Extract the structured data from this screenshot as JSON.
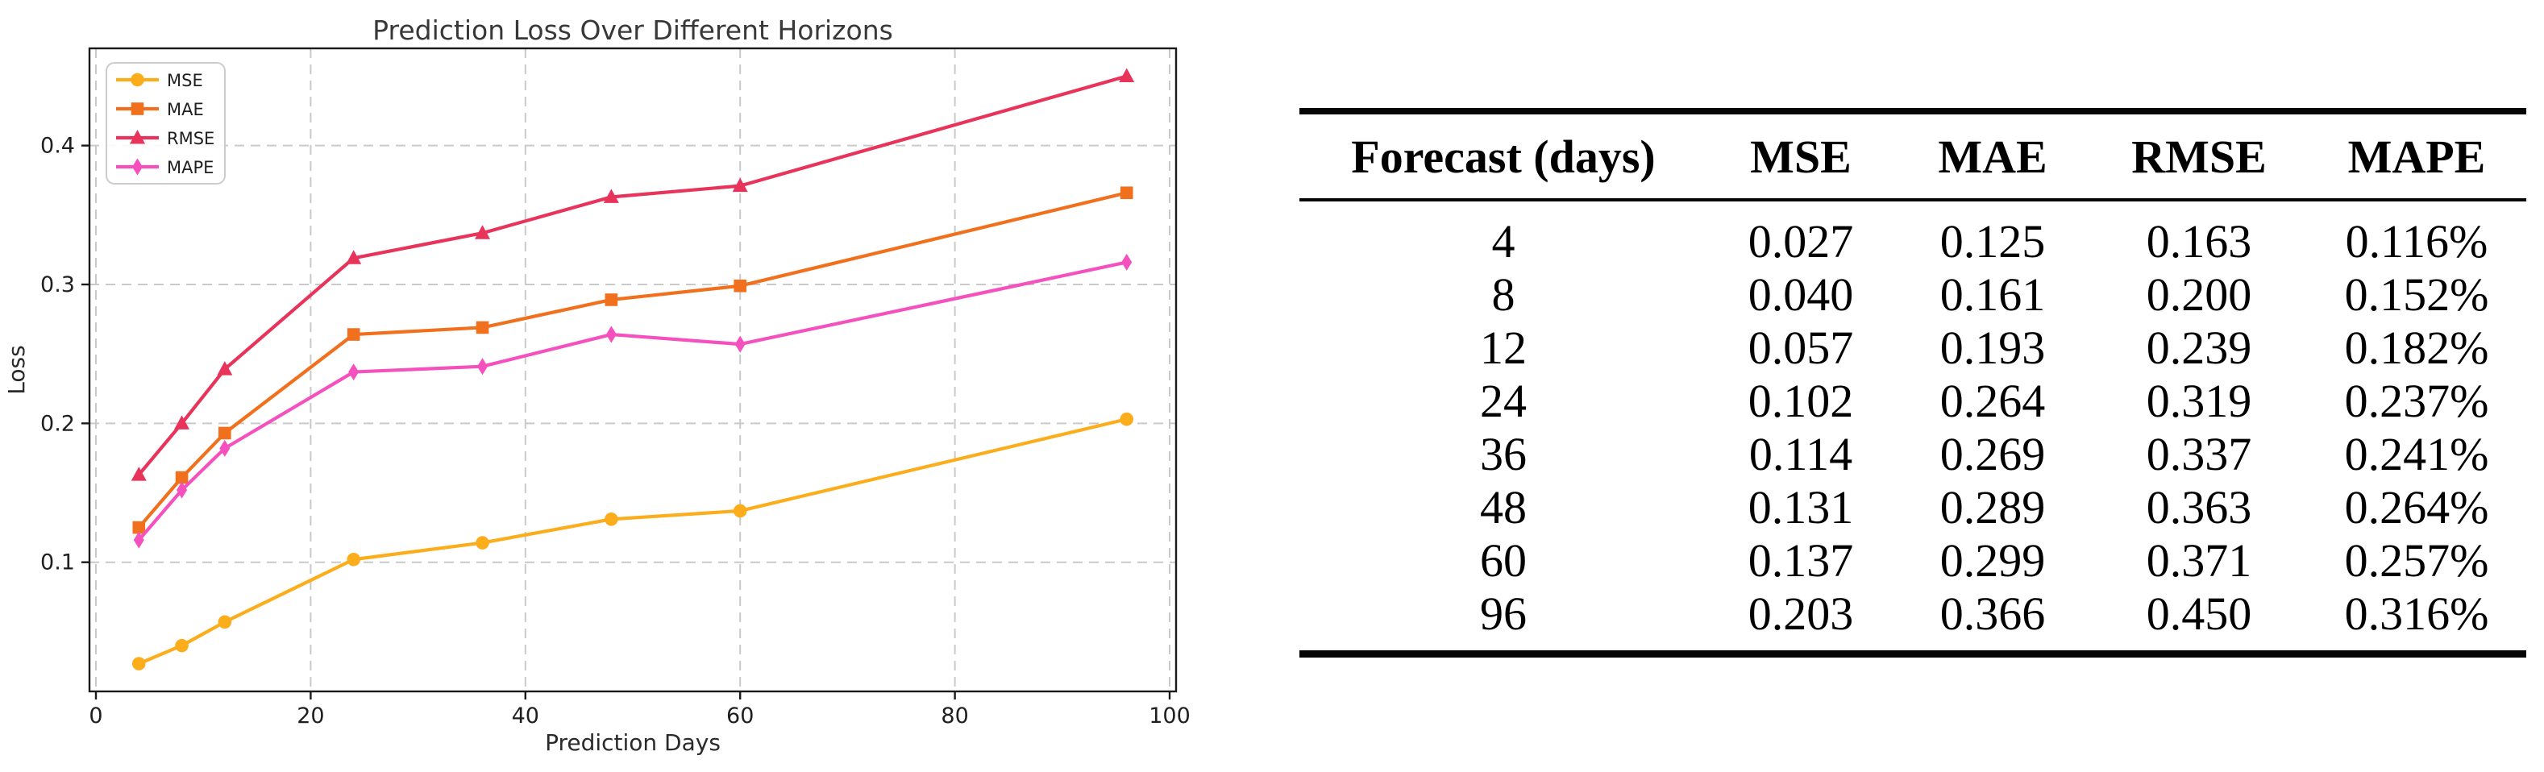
{
  "chart_data": {
    "type": "line",
    "title": "Prediction Loss Over Different Horizons",
    "xlabel": "Prediction Days",
    "ylabel": "Loss",
    "x": [
      4,
      8,
      12,
      24,
      36,
      48,
      60,
      96
    ],
    "series": [
      {
        "name": "MSE",
        "marker": "circle",
        "color": "#FBAD1C",
        "values": [
          0.027,
          0.04,
          0.057,
          0.102,
          0.114,
          0.131,
          0.137,
          0.203
        ]
      },
      {
        "name": "MAE",
        "marker": "square",
        "color": "#F1701E",
        "values": [
          0.125,
          0.161,
          0.193,
          0.264,
          0.269,
          0.289,
          0.299,
          0.366
        ]
      },
      {
        "name": "RMSE",
        "marker": "triangle",
        "color": "#E8335B",
        "values": [
          0.163,
          0.2,
          0.239,
          0.319,
          0.337,
          0.363,
          0.371,
          0.45
        ]
      },
      {
        "name": "MAPE",
        "marker": "diamond",
        "color": "#F551BE",
        "values": [
          0.116,
          0.152,
          0.182,
          0.237,
          0.241,
          0.264,
          0.257,
          0.316
        ]
      }
    ],
    "xticks": [
      0,
      20,
      40,
      60,
      80,
      100
    ],
    "xtick_labels": [
      "0",
      "20",
      "40",
      "60",
      "80",
      "100"
    ],
    "yticks": [
      0.1,
      0.2,
      0.3,
      0.4
    ],
    "ytick_labels": [
      "0.1",
      "0.2",
      "0.3",
      "0.4"
    ],
    "xlim": [
      -0.6,
      100.6
    ],
    "ylim": [
      0.007,
      0.47
    ],
    "grid": true,
    "grid_style": "dashed",
    "grid_color": "#c9c9c9",
    "spine_color": "#1a1a1a",
    "legend_position": "upper left"
  },
  "table": {
    "headers": [
      "Forecast (days)",
      "MSE",
      "MAE",
      "RMSE",
      "MAPE"
    ],
    "rows": [
      [
        "4",
        "0.027",
        "0.125",
        "0.163",
        "0.116%"
      ],
      [
        "8",
        "0.040",
        "0.161",
        "0.200",
        "0.152%"
      ],
      [
        "12",
        "0.057",
        "0.193",
        "0.239",
        "0.182%"
      ],
      [
        "24",
        "0.102",
        "0.264",
        "0.319",
        "0.237%"
      ],
      [
        "36",
        "0.114",
        "0.269",
        "0.337",
        "0.241%"
      ],
      [
        "48",
        "0.131",
        "0.289",
        "0.363",
        "0.264%"
      ],
      [
        "60",
        "0.137",
        "0.299",
        "0.371",
        "0.257%"
      ],
      [
        "96",
        "0.203",
        "0.366",
        "0.450",
        "0.316%"
      ]
    ]
  }
}
